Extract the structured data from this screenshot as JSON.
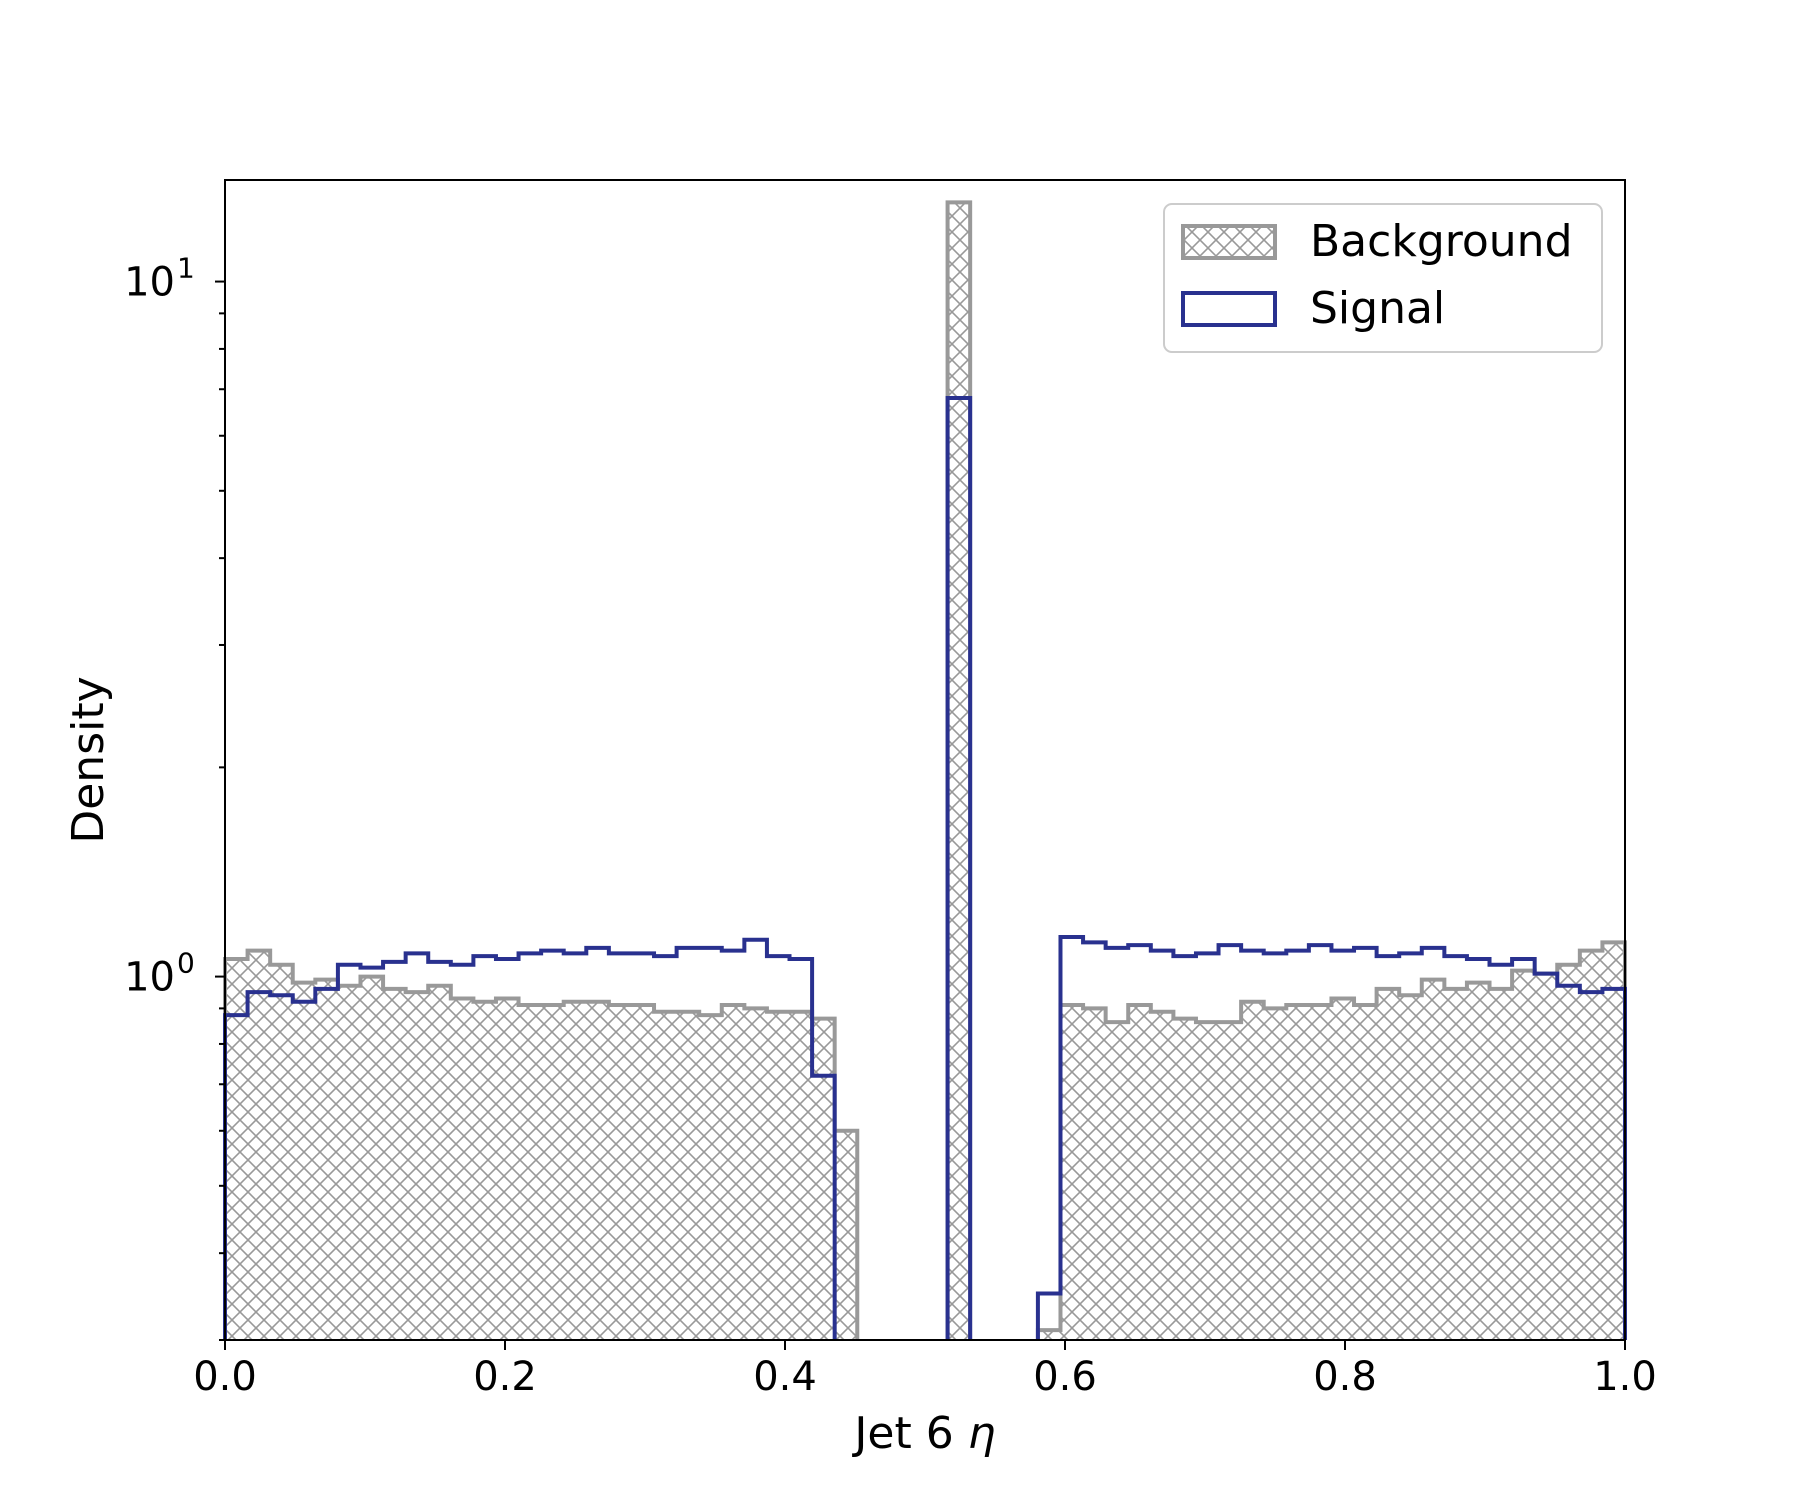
{
  "chart_data": {
    "type": "histogram",
    "xlabel": "Jet 6 η",
    "xlabel_main": "Jet 6 ",
    "xlabel_symbol": "η",
    "ylabel": "Density",
    "xlim": [
      0.0,
      1.0
    ],
    "ylim": [
      0.3,
      14
    ],
    "yscale": "log",
    "grid": false,
    "legend_position": "top-right",
    "xticks": [
      0.0,
      0.2,
      0.4,
      0.6,
      0.8,
      1.0
    ],
    "xtick_labels": [
      "0.0",
      "0.2",
      "0.4",
      "0.6",
      "0.8",
      "1.0"
    ],
    "yticks": [
      {
        "value": 1,
        "base": "10",
        "exp": "0"
      },
      {
        "value": 10,
        "base": "10",
        "exp": "1"
      }
    ],
    "bin_width": 0.01667,
    "series": [
      {
        "name": "Background",
        "style": "hatched",
        "color": "#999999",
        "values": [
          1.06,
          1.09,
          1.04,
          0.98,
          0.99,
          0.97,
          1.0,
          0.96,
          0.95,
          0.97,
          0.93,
          0.92,
          0.93,
          0.91,
          0.91,
          0.92,
          0.92,
          0.91,
          0.91,
          0.89,
          0.89,
          0.88,
          0.91,
          0.9,
          0.89,
          0.89,
          0.87,
          0.6,
          0,
          0,
          0,
          0,
          13,
          0,
          0,
          0,
          0.31,
          0.91,
          0.9,
          0.86,
          0.91,
          0.89,
          0.87,
          0.86,
          0.86,
          0.92,
          0.9,
          0.91,
          0.91,
          0.93,
          0.91,
          0.96,
          0.94,
          0.99,
          0.96,
          0.98,
          0.96,
          1.02,
          1.01,
          1.04,
          1.09,
          1.12
        ]
      },
      {
        "name": "Signal",
        "style": "step",
        "color": "#29318f",
        "values": [
          0.88,
          0.95,
          0.94,
          0.92,
          0.96,
          1.04,
          1.03,
          1.05,
          1.08,
          1.05,
          1.04,
          1.07,
          1.06,
          1.08,
          1.09,
          1.08,
          1.1,
          1.08,
          1.08,
          1.07,
          1.1,
          1.1,
          1.09,
          1.13,
          1.07,
          1.06,
          0.72,
          0,
          0,
          0,
          0,
          0,
          6.8,
          0,
          0,
          0,
          0.35,
          1.14,
          1.12,
          1.1,
          1.11,
          1.09,
          1.07,
          1.08,
          1.11,
          1.09,
          1.08,
          1.09,
          1.11,
          1.09,
          1.1,
          1.07,
          1.08,
          1.1,
          1.07,
          1.06,
          1.04,
          1.06,
          1.01,
          0.97,
          0.95,
          0.96
        ]
      }
    ]
  }
}
